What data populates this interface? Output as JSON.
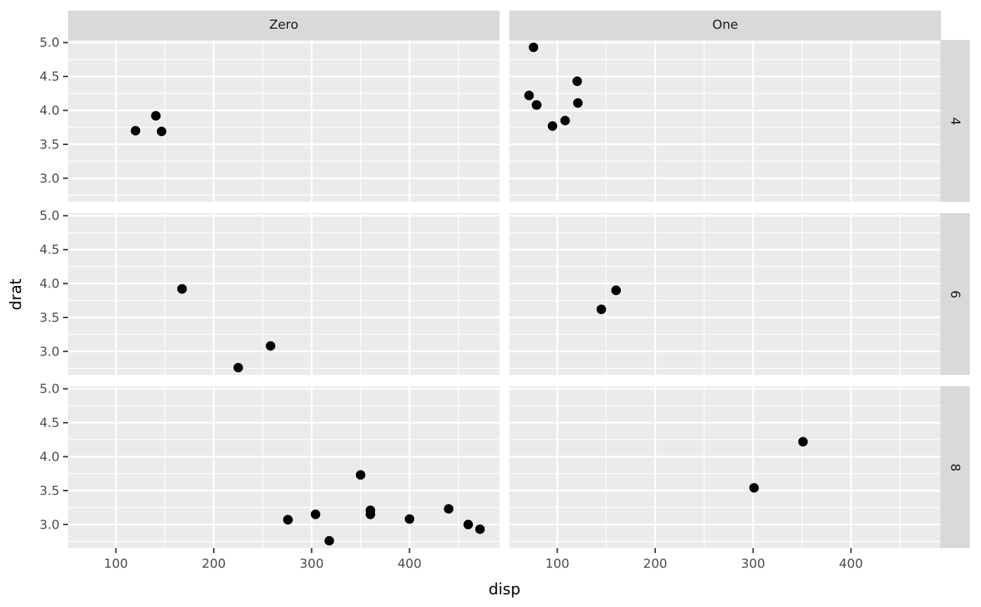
{
  "chart_data": {
    "type": "scatter",
    "title": "",
    "xlabel": "disp",
    "ylabel": "drat",
    "facet_col_labels": [
      "Zero",
      "One"
    ],
    "facet_row_labels": [
      "4",
      "6",
      "8"
    ],
    "x_tick_labels": [
      "100",
      "200",
      "300",
      "400"
    ],
    "y_tick_labels": [
      "5.0",
      "4.5",
      "4.0",
      "3.5",
      "3.0"
    ],
    "x_ticks": [
      100,
      200,
      300,
      400
    ],
    "y_ticks": [
      5.0,
      4.5,
      4.0,
      3.5,
      3.0
    ],
    "x_minor_ticks": [
      150,
      250,
      350,
      450
    ],
    "y_minor_ticks": [
      2.75,
      3.25,
      3.75,
      4.25,
      4.75
    ],
    "x_domain": [
      51.055,
      492.045
    ],
    "y_domain": [
      2.6515,
      5.0385
    ],
    "grid": true,
    "legend": "none",
    "colors": {
      "panel_background": "#EBEBEB",
      "strip_background": "#D9D9D9",
      "gridline": "#FFFFFF",
      "point": "#000000",
      "axis_text": "#4D4D4D",
      "tick_mark": "#333333",
      "strip_text": "#1A1A1A",
      "axis_title": "#000000"
    },
    "panels": [
      {
        "col": "Zero",
        "row": "4",
        "points": [
          [
            120.1,
            3.7
          ],
          [
            140.8,
            3.92
          ],
          [
            146.7,
            3.69
          ]
        ]
      },
      {
        "col": "One",
        "row": "4",
        "points": [
          [
            108.0,
            3.85
          ],
          [
            78.7,
            4.08
          ],
          [
            75.7,
            4.93
          ],
          [
            71.1,
            4.22
          ],
          [
            79.0,
            4.08
          ],
          [
            120.3,
            4.43
          ],
          [
            95.1,
            3.77
          ],
          [
            121.0,
            4.11
          ]
        ]
      },
      {
        "col": "Zero",
        "row": "6",
        "points": [
          [
            258.0,
            3.08
          ],
          [
            225.0,
            2.76
          ],
          [
            167.6,
            3.92
          ],
          [
            167.6,
            3.92
          ]
        ]
      },
      {
        "col": "One",
        "row": "6",
        "points": [
          [
            160.0,
            3.9
          ],
          [
            160.0,
            3.9
          ],
          [
            145.0,
            3.62
          ]
        ]
      },
      {
        "col": "Zero",
        "row": "8",
        "points": [
          [
            360.0,
            3.15
          ],
          [
            360.0,
            3.21
          ],
          [
            275.8,
            3.07
          ],
          [
            275.8,
            3.07
          ],
          [
            275.8,
            3.07
          ],
          [
            472.0,
            2.93
          ],
          [
            460.0,
            3.0
          ],
          [
            440.0,
            3.23
          ],
          [
            318.0,
            2.76
          ],
          [
            304.0,
            3.15
          ],
          [
            350.0,
            3.73
          ],
          [
            400.0,
            3.08
          ]
        ]
      },
      {
        "col": "One",
        "row": "8",
        "points": [
          [
            351.0,
            4.22
          ],
          [
            301.0,
            3.54
          ]
        ]
      }
    ]
  }
}
